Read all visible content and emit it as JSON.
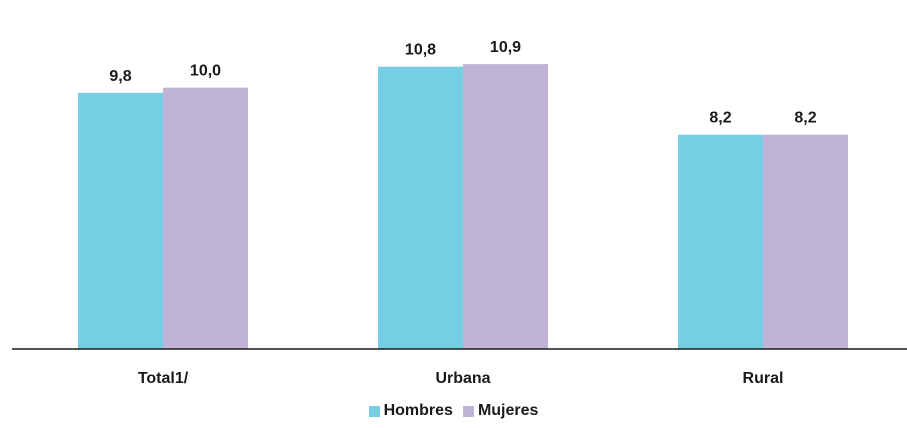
{
  "chart_data": {
    "type": "bar",
    "categories": [
      "Total1/",
      "Urbana",
      "Rural"
    ],
    "series": [
      {
        "name": "Hombres",
        "values": [
          9.8,
          10.8,
          8.2
        ],
        "labels": [
          "9,8",
          "10,8",
          "8,2"
        ],
        "color": "#73cfe1"
      },
      {
        "name": "Mujeres",
        "values": [
          10.0,
          10.9,
          8.2
        ],
        "labels": [
          "10,0",
          "10,9",
          "8,2"
        ],
        "color": "#bfb4d5"
      }
    ],
    "ylim": [
      0,
      13.2
    ],
    "grid": false,
    "legend_position": "bottom"
  }
}
